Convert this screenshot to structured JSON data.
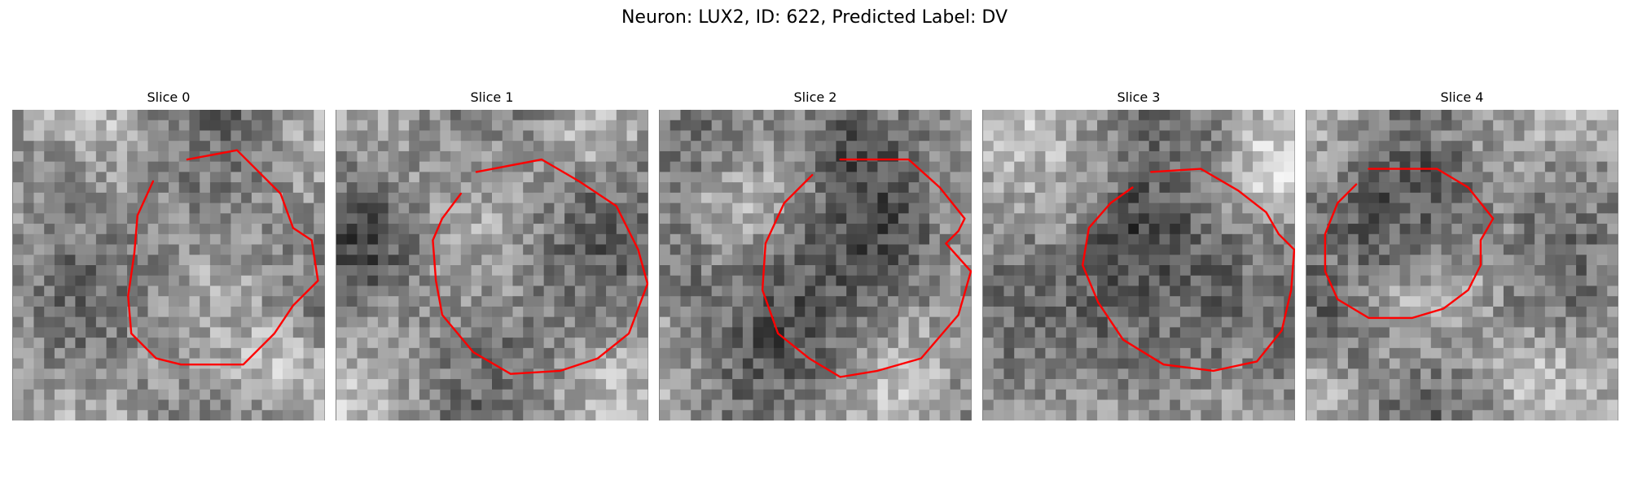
{
  "figure": {
    "title": "Neuron: LUX2, ID: 622, Predicted Label: DV"
  },
  "panels": [
    {
      "title": "Slice 0",
      "center_intensity": "mixed",
      "contour_color": "#ff0000"
    },
    {
      "title": "Slice 1",
      "center_intensity": "mixed",
      "contour_color": "#ff0000"
    },
    {
      "title": "Slice 2",
      "center_intensity": "dark",
      "contour_color": "#ff0000"
    },
    {
      "title": "Slice 3",
      "center_intensity": "dark",
      "contour_color": "#ff0000"
    },
    {
      "title": "Slice 4",
      "center_intensity": "dark",
      "contour_color": "#ff0000"
    }
  ],
  "colors": {
    "contour": "#ff0000",
    "colormap": "grayscale"
  }
}
